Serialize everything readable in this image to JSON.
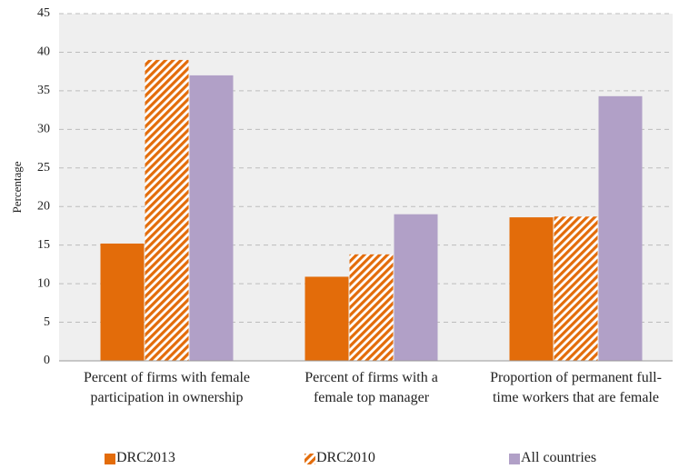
{
  "chart_data": {
    "type": "bar",
    "y_label": "Percentage",
    "categories": [
      "Percent of firms with female participation in ownership",
      "Percent of firms with a female top manager",
      "Proportion of permanent full-time workers that are female"
    ],
    "series": [
      {
        "name": "DRC2013",
        "color": "#e36c0a",
        "pattern": "solid",
        "values": [
          15.2,
          10.9,
          18.6
        ]
      },
      {
        "name": "DRC2010",
        "color": "#e36c0a",
        "pattern": "hatched",
        "values": [
          39,
          13.8,
          18.7
        ]
      },
      {
        "name": "All countries",
        "color": "#b1a0c7",
        "pattern": "solid",
        "values": [
          37,
          19,
          34.3
        ]
      }
    ],
    "ylim": [
      0,
      45
    ],
    "yticks": [
      0,
      5,
      10,
      15,
      20,
      25,
      30,
      35,
      40,
      45
    ],
    "grid": true,
    "legend": "bottom"
  }
}
